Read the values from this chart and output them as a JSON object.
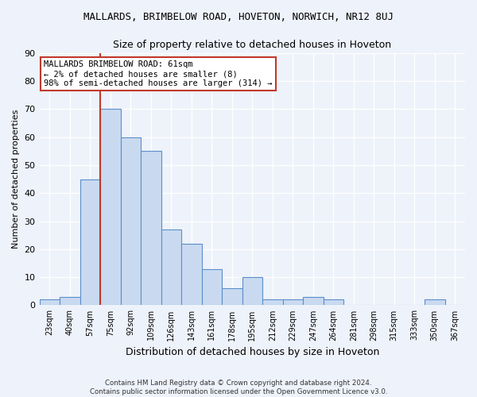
{
  "title": "MALLARDS, BRIMBELOW ROAD, HOVETON, NORWICH, NR12 8UJ",
  "subtitle": "Size of property relative to detached houses in Hoveton",
  "xlabel": "Distribution of detached houses by size in Hoveton",
  "ylabel": "Number of detached properties",
  "categories": [
    "23sqm",
    "40sqm",
    "57sqm",
    "75sqm",
    "92sqm",
    "109sqm",
    "126sqm",
    "143sqm",
    "161sqm",
    "178sqm",
    "195sqm",
    "212sqm",
    "229sqm",
    "247sqm",
    "264sqm",
    "281sqm",
    "298sqm",
    "315sqm",
    "333sqm",
    "350sqm",
    "367sqm"
  ],
  "values": [
    2,
    3,
    45,
    70,
    60,
    55,
    27,
    22,
    13,
    6,
    10,
    2,
    2,
    3,
    2,
    0,
    0,
    0,
    0,
    2,
    0
  ],
  "bar_color": "#c9daf0",
  "bar_edge_color": "#5b8fcc",
  "vline_color": "#c0392b",
  "vline_x_index": 2.5,
  "annotation_text": "MALLARDS BRIMBELOW ROAD: 61sqm\n← 2% of detached houses are smaller (8)\n98% of semi-detached houses are larger (314) →",
  "annotation_box_color": "white",
  "annotation_box_edge": "#c0392b",
  "ylim": [
    0,
    90
  ],
  "yticks": [
    0,
    10,
    20,
    30,
    40,
    50,
    60,
    70,
    80,
    90
  ],
  "footer1": "Contains HM Land Registry data © Crown copyright and database right 2024.",
  "footer2": "Contains public sector information licensed under the Open Government Licence v3.0.",
  "bg_color": "#eef2fa",
  "grid_color": "white"
}
